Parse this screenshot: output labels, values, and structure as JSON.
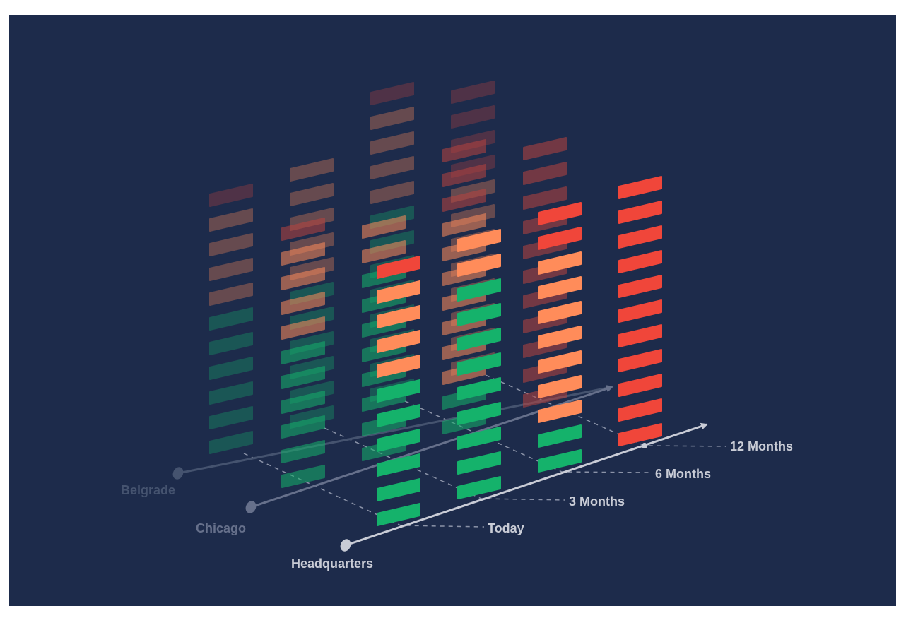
{
  "locations": [
    {
      "name": "Belgrade",
      "key": "belgrade",
      "color": "#45536f",
      "opacity": 0.45
    },
    {
      "name": "Chicago",
      "key": "chicago",
      "color": "#66708b",
      "opacity": 0.7
    },
    {
      "name": "Headquarters",
      "key": "headquarters",
      "color": "#c9ccd6",
      "opacity": 1
    }
  ],
  "timeframes": [
    "Today",
    "3 Months",
    "6 Months",
    "12 Months"
  ],
  "colors": {
    "background": "#1d2b4b",
    "green": "#15b26b",
    "orange": "#ff8c5a",
    "red": "#f0463a",
    "darkred": "#b8433f",
    "label": "#c9ccd6"
  },
  "stacks": [
    {
      "location": "belgrade",
      "timeframe": "Today",
      "segments": {
        "green": 6,
        "orange": 4,
        "red": 1
      }
    },
    {
      "location": "belgrade",
      "timeframe": "3 Months",
      "segments": {
        "green": 6,
        "orange": 5,
        "red": 0
      }
    },
    {
      "location": "belgrade",
      "timeframe": "6 Months",
      "segments": {
        "green": 8,
        "orange": 4,
        "red": 1
      }
    },
    {
      "location": "belgrade",
      "timeframe": "12 Months",
      "segments": {
        "green": 0,
        "orange": 8,
        "red": 4
      }
    },
    {
      "location": "chicago",
      "timeframe": "Today",
      "segments": {
        "green": 6,
        "orange": 4,
        "red": 1
      }
    },
    {
      "location": "chicago",
      "timeframe": "3 Months",
      "segments": {
        "green": 8,
        "orange": 2,
        "red": 0
      }
    },
    {
      "location": "chicago",
      "timeframe": "6 Months",
      "segments": {
        "green": 2,
        "orange": 7,
        "red": 3
      }
    },
    {
      "location": "chicago",
      "timeframe": "12 Months",
      "segments": {
        "green": 0,
        "orange": 0,
        "red": 11
      }
    },
    {
      "location": "headquarters",
      "timeframe": "Today",
      "segments": {
        "green": 6,
        "orange": 4,
        "red": 1
      }
    },
    {
      "location": "headquarters",
      "timeframe": "3 Months",
      "segments": {
        "green": 9,
        "orange": 2,
        "red": 0
      }
    },
    {
      "location": "headquarters",
      "timeframe": "6 Months",
      "segments": {
        "green": 2,
        "orange": 7,
        "red": 2
      }
    },
    {
      "location": "headquarters",
      "timeframe": "12 Months",
      "segments": {
        "green": 0,
        "orange": 0,
        "red": 11
      }
    }
  ]
}
